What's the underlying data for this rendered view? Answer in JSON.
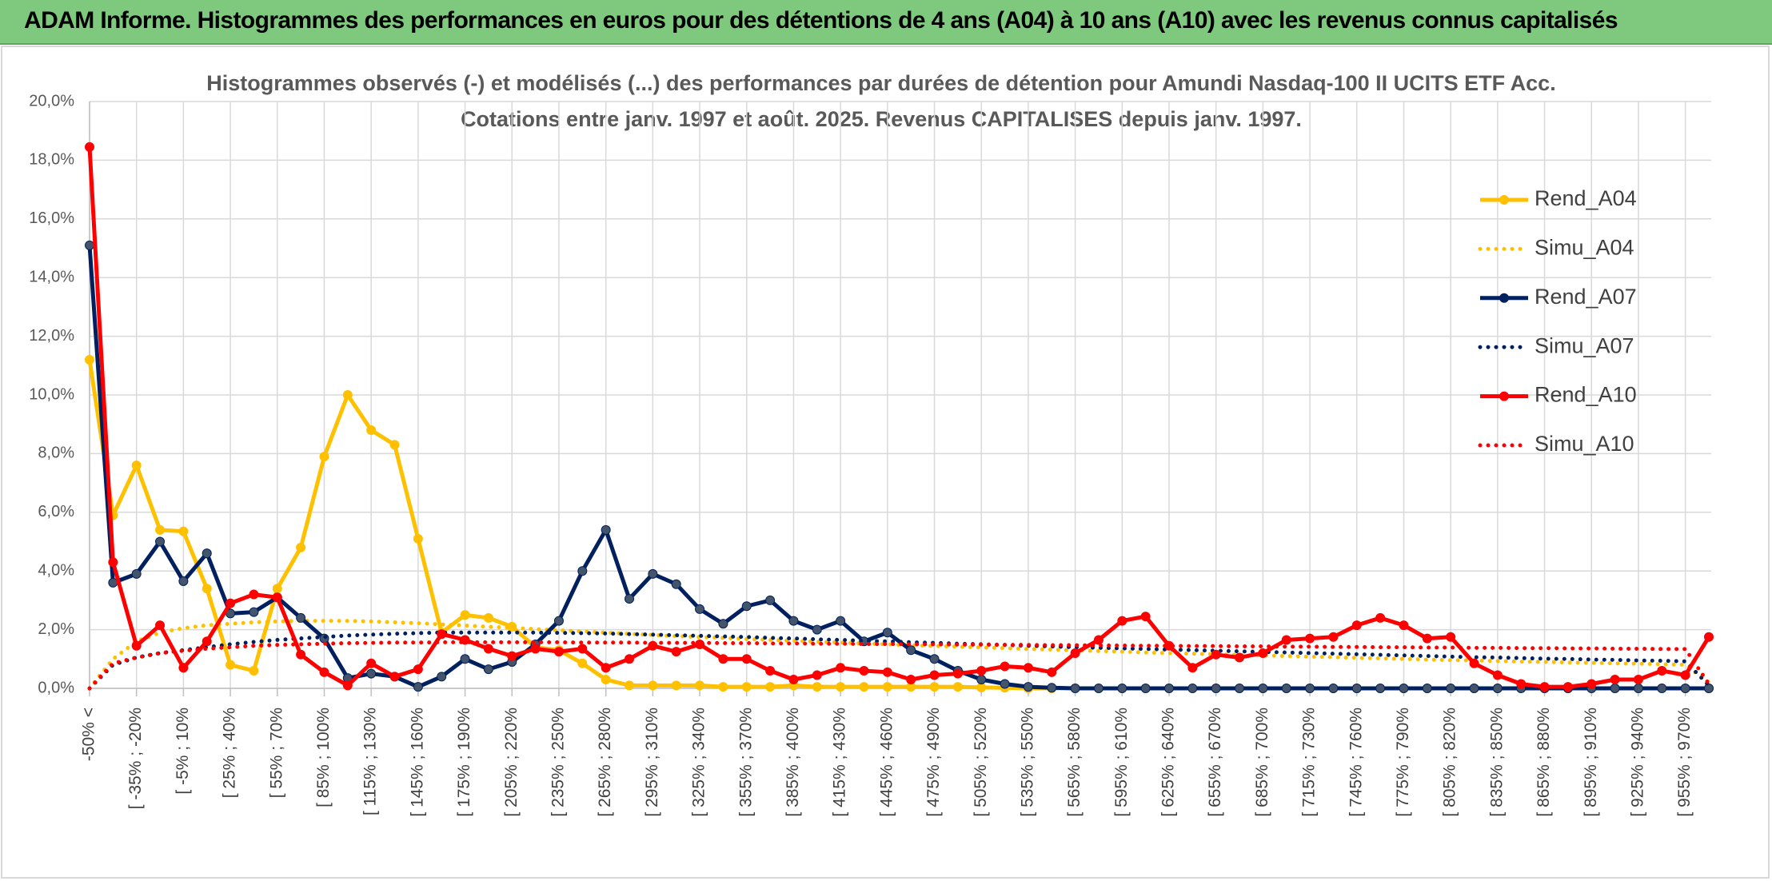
{
  "header": {
    "title": "ADAM Informe. Histogrammes des performances en euros pour des détentions de 4 ans (A04) à 10 ans (A10) avec les revenus connus capitalisés"
  },
  "chart_data": {
    "type": "line",
    "title": [
      "Histogrammes observés (-) et modélisés (...) des performances par durées de détention pour Amundi Nasdaq-100 II UCITS ETF Acc.",
      "Cotations entre janv. 1997 et août. 2025. Revenus CAPITALISES depuis janv. 1997."
    ],
    "categories": [
      "-50% <",
      null,
      "[ -35% ; -20%",
      null,
      "[ -5% ; 10%",
      null,
      "[ 25% ; 40%",
      null,
      "[ 55% ; 70%",
      null,
      "[ 85% ; 100%",
      null,
      "[ 115% ; 130%",
      null,
      "[ 145% ; 160%",
      null,
      "[ 175% ; 190%",
      null,
      "[ 205% ; 220%",
      null,
      "[ 235% ; 250%",
      null,
      "[ 265% ; 280%",
      null,
      "[ 295% ; 310%",
      null,
      "[ 325% ; 340%",
      null,
      "[ 355% ; 370%",
      null,
      "[ 385% ; 400%",
      null,
      "[ 415% ; 430%",
      null,
      "[ 445% ; 460%",
      null,
      "[ 475% ; 490%",
      null,
      "[ 505% ; 520%",
      null,
      "[ 535% ; 550%",
      null,
      "[ 565% ; 580%",
      null,
      "[ 595% ; 610%",
      null,
      "[ 625% ; 640%",
      null,
      "[ 655% ; 670%",
      null,
      "[ 685% ; 700%",
      null,
      "[ 715% ; 730%",
      null,
      "[ 745% ; 760%",
      null,
      "[ 775% ; 790%",
      null,
      "[ 805% ; 820%",
      null,
      "[ 835% ; 850%",
      null,
      "[ 865% ; 880%",
      null,
      "[ 895% ; 910%",
      null,
      "[ 925% ; 940%",
      null,
      "[ 955% ; 970%",
      null
    ],
    "series": [
      {
        "name": "Rend_A04",
        "color": "#ffc000",
        "style": "solid",
        "marker": true,
        "values": [
          11.2,
          5.9,
          7.6,
          5.4,
          5.35,
          3.4,
          0.8,
          0.6,
          3.4,
          4.8,
          7.9,
          10.0,
          8.8,
          8.3,
          5.1,
          1.9,
          2.5,
          2.4,
          2.1,
          1.4,
          1.3,
          0.85,
          0.3,
          0.1,
          0.1,
          0.1,
          0.1,
          0.05,
          0.05,
          0.05,
          0.1,
          0.05,
          0.05,
          0.05,
          0.05,
          0.05,
          0.05,
          0.05,
          0.03,
          0.02,
          0,
          0,
          0,
          0,
          0,
          0,
          0,
          0,
          0,
          0,
          0,
          0,
          0,
          0,
          0,
          0,
          0,
          0,
          0,
          0,
          0,
          0,
          0,
          0,
          0,
          0,
          0,
          0,
          0,
          0
        ]
      },
      {
        "name": "Simu_A04",
        "color": "#ffc000",
        "style": "dotted",
        "marker": false,
        "values": [
          0,
          1.0,
          1.6,
          1.9,
          2.05,
          2.15,
          2.2,
          2.25,
          2.28,
          2.3,
          2.3,
          2.3,
          2.28,
          2.25,
          2.22,
          2.18,
          2.14,
          2.1,
          2.06,
          2.02,
          1.98,
          1.94,
          1.9,
          1.86,
          1.82,
          1.78,
          1.75,
          1.72,
          1.68,
          1.65,
          1.62,
          1.59,
          1.56,
          1.53,
          1.5,
          1.47,
          1.44,
          1.42,
          1.39,
          1.37,
          1.34,
          1.32,
          1.29,
          1.27,
          1.25,
          1.22,
          1.2,
          1.18,
          1.16,
          1.14,
          1.12,
          1.1,
          1.08,
          1.06,
          1.04,
          1.02,
          1.0,
          0.98,
          0.96,
          0.95,
          0.93,
          0.91,
          0.9,
          0.88,
          0.87,
          0.85,
          0.84,
          0.82,
          0.8,
          0.2
        ]
      },
      {
        "name": "Rend_A07",
        "color": "#002060",
        "style": "solid",
        "marker": true,
        "values": [
          15.1,
          3.6,
          3.9,
          5.0,
          3.65,
          4.6,
          2.55,
          2.6,
          3.1,
          2.4,
          1.7,
          0.35,
          0.5,
          0.4,
          0.05,
          0.4,
          1.0,
          0.65,
          0.9,
          1.5,
          2.3,
          4.0,
          5.4,
          3.05,
          3.9,
          3.55,
          2.7,
          2.2,
          2.8,
          3.0,
          2.3,
          2.0,
          2.3,
          1.6,
          1.9,
          1.3,
          1.0,
          0.6,
          0.3,
          0.15,
          0.05,
          0.02,
          0,
          0,
          0,
          0,
          0,
          0,
          0,
          0,
          0,
          0,
          0,
          0,
          0,
          0,
          0,
          0,
          0,
          0,
          0,
          0,
          0,
          0,
          0,
          0,
          0,
          0,
          0,
          0
        ]
      },
      {
        "name": "Simu_A07",
        "color": "#002060",
        "style": "dotted",
        "marker": false,
        "values": [
          0,
          0.8,
          1.05,
          1.2,
          1.3,
          1.4,
          1.5,
          1.58,
          1.65,
          1.7,
          1.75,
          1.8,
          1.83,
          1.86,
          1.88,
          1.9,
          1.9,
          1.9,
          1.9,
          1.9,
          1.89,
          1.88,
          1.87,
          1.85,
          1.83,
          1.81,
          1.79,
          1.77,
          1.75,
          1.72,
          1.7,
          1.67,
          1.65,
          1.62,
          1.6,
          1.57,
          1.55,
          1.52,
          1.5,
          1.48,
          1.45,
          1.43,
          1.4,
          1.38,
          1.36,
          1.34,
          1.32,
          1.3,
          1.28,
          1.26,
          1.24,
          1.22,
          1.2,
          1.18,
          1.16,
          1.14,
          1.12,
          1.1,
          1.08,
          1.06,
          1.05,
          1.03,
          1.01,
          1.0,
          0.98,
          0.97,
          0.95,
          0.94,
          0.92,
          0.1
        ]
      },
      {
        "name": "Rend_A10",
        "color": "#ff0000",
        "style": "solid",
        "marker": true,
        "values": [
          18.45,
          4.3,
          1.45,
          2.15,
          0.7,
          1.6,
          2.9,
          3.2,
          3.1,
          1.15,
          0.55,
          0.1,
          0.85,
          0.4,
          0.65,
          1.85,
          1.65,
          1.35,
          1.1,
          1.35,
          1.25,
          1.35,
          0.7,
          1.0,
          1.45,
          1.25,
          1.5,
          1.0,
          1.0,
          0.6,
          0.3,
          0.45,
          0.7,
          0.6,
          0.55,
          0.3,
          0.45,
          0.5,
          0.6,
          0.75,
          0.7,
          0.55,
          1.2,
          1.65,
          2.3,
          2.45,
          1.45,
          0.7,
          1.15,
          1.05,
          1.2,
          1.65,
          1.7,
          1.75,
          2.15,
          2.4,
          2.15,
          1.7,
          1.75,
          0.85,
          0.45,
          0.15,
          0.05,
          0.05,
          0.15,
          0.3,
          0.3,
          0.6,
          0.45,
          1.75
        ]
      },
      {
        "name": "Simu_A10",
        "color": "#ff0000",
        "style": "dotted",
        "marker": false,
        "values": [
          0,
          0.85,
          1.05,
          1.2,
          1.28,
          1.35,
          1.4,
          1.45,
          1.48,
          1.5,
          1.52,
          1.54,
          1.55,
          1.56,
          1.56,
          1.57,
          1.57,
          1.57,
          1.57,
          1.57,
          1.57,
          1.56,
          1.56,
          1.56,
          1.55,
          1.55,
          1.55,
          1.54,
          1.54,
          1.53,
          1.53,
          1.52,
          1.52,
          1.51,
          1.51,
          1.5,
          1.5,
          1.49,
          1.49,
          1.48,
          1.48,
          1.47,
          1.47,
          1.46,
          1.46,
          1.45,
          1.45,
          1.44,
          1.44,
          1.43,
          1.43,
          1.42,
          1.42,
          1.41,
          1.41,
          1.4,
          1.4,
          1.39,
          1.39,
          1.38,
          1.38,
          1.37,
          1.37,
          1.36,
          1.36,
          1.35,
          1.35,
          1.34,
          1.34,
          0.15
        ]
      }
    ],
    "ylim": [
      0,
      20
    ],
    "yticks": [
      {
        "value": 0,
        "label": "0,0%"
      },
      {
        "value": 2,
        "label": "2,0%"
      },
      {
        "value": 4,
        "label": "4,0%"
      },
      {
        "value": 6,
        "label": "6,0%"
      },
      {
        "value": 8,
        "label": "8,0%"
      },
      {
        "value": 10,
        "label": "10,0%"
      },
      {
        "value": 12,
        "label": "12,0%"
      },
      {
        "value": 14,
        "label": "14,0%"
      },
      {
        "value": 16,
        "label": "16,0%"
      },
      {
        "value": 18,
        "label": "18,0%"
      },
      {
        "value": 20,
        "label": "20,0%"
      }
    ],
    "grid": true,
    "legend": "right"
  }
}
